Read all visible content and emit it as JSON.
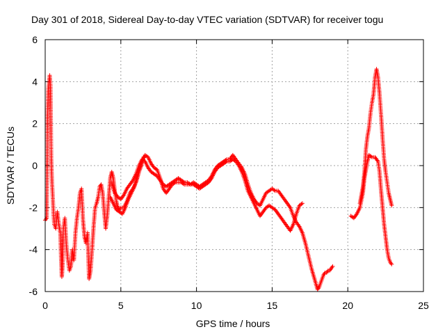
{
  "chart_data": {
    "type": "scatter",
    "title": "Day 301 of 2018, Sidereal Day-to-day VTEC variation (SDTVAR) for receiver togu",
    "xlabel": "GPS time / hours",
    "ylabel": "SDTVAR / TECUs",
    "xlim": [
      0,
      25
    ],
    "ylim": [
      -6,
      6
    ],
    "xticks": [
      0,
      5,
      10,
      15,
      20,
      25
    ],
    "yticks": [
      -6,
      -4,
      -2,
      0,
      2,
      4,
      6
    ],
    "grid": true,
    "marker": "+",
    "series_color": "#ff0000",
    "series": [
      {
        "name": "SDTVAR",
        "segments": [
          [
            [
              0.0,
              -2.6
            ],
            [
              0.1,
              -2.5
            ],
            [
              0.15,
              2.3
            ],
            [
              0.2,
              3.6
            ],
            [
              0.3,
              4.3
            ],
            [
              0.35,
              3.8
            ],
            [
              0.4,
              0.3
            ],
            [
              0.45,
              -0.8
            ],
            [
              0.5,
              -1.5
            ],
            [
              0.55,
              -2.3
            ],
            [
              0.6,
              -2.8
            ],
            [
              0.7,
              -3.0
            ],
            [
              0.8,
              -2.2
            ],
            [
              0.9,
              -2.8
            ],
            [
              1.0,
              -3.2
            ],
            [
              1.05,
              -4.4
            ],
            [
              1.1,
              -5.3
            ],
            [
              1.15,
              -4.8
            ],
            [
              1.2,
              -3.0
            ],
            [
              1.3,
              -2.5
            ],
            [
              1.4,
              -3.8
            ],
            [
              1.5,
              -4.5
            ],
            [
              1.6,
              -5.0
            ],
            [
              1.7,
              -4.8
            ],
            [
              1.8,
              -4.0
            ],
            [
              1.9,
              -4.5
            ],
            [
              2.0,
              -3.2
            ],
            [
              2.1,
              -2.5
            ],
            [
              2.2,
              -2.0
            ],
            [
              2.3,
              -1.3
            ],
            [
              2.4,
              -1.1
            ],
            [
              2.5,
              -2.6
            ],
            [
              2.6,
              -3.4
            ],
            [
              2.7,
              -3.7
            ],
            [
              2.8,
              -3.2
            ],
            [
              2.9,
              -5.4
            ],
            [
              3.0,
              -5.0
            ],
            [
              3.1,
              -4.0
            ],
            [
              3.2,
              -2.9
            ],
            [
              3.3,
              -2.0
            ],
            [
              3.4,
              -1.8
            ],
            [
              3.5,
              -1.5
            ],
            [
              3.6,
              -1.0
            ],
            [
              3.7,
              -0.9
            ],
            [
              3.8,
              -1.3
            ],
            [
              3.9,
              -2.2
            ],
            [
              4.0,
              -3.0
            ],
            [
              4.1,
              -2.4
            ],
            [
              4.2,
              -1.5
            ],
            [
              4.3,
              -0.6
            ],
            [
              4.4,
              -0.3
            ],
            [
              4.5,
              -0.6
            ],
            [
              4.6,
              -1.2
            ],
            [
              4.7,
              -1.7
            ],
            [
              4.8,
              -2.0
            ],
            [
              4.9,
              -2.1
            ],
            [
              5.0,
              -2.0
            ],
            [
              5.2,
              -2.0
            ],
            [
              5.4,
              -1.7
            ],
            [
              5.6,
              -1.3
            ],
            [
              5.8,
              -1.1
            ],
            [
              6.0,
              -0.8
            ],
            [
              6.2,
              -0.3
            ],
            [
              6.4,
              0.2
            ],
            [
              6.6,
              0.5
            ],
            [
              6.8,
              0.4
            ],
            [
              7.0,
              0.1
            ],
            [
              7.2,
              -0.1
            ],
            [
              7.4,
              -0.2
            ],
            [
              7.6,
              -0.6
            ],
            [
              7.8,
              -1.1
            ],
            [
              8.0,
              -1.3
            ],
            [
              8.2,
              -1.1
            ],
            [
              8.4,
              -0.9
            ],
            [
              8.6,
              -0.8
            ],
            [
              8.8,
              -0.8
            ],
            [
              9.0,
              -0.8
            ],
            [
              9.2,
              -0.9
            ],
            [
              9.4,
              -0.9
            ],
            [
              9.6,
              -0.9
            ],
            [
              9.8,
              -0.8
            ],
            [
              10.0,
              -0.9
            ],
            [
              10.2,
              -1.0
            ],
            [
              10.4,
              -0.9
            ],
            [
              10.6,
              -0.8
            ],
            [
              10.8,
              -0.7
            ],
            [
              11.0,
              -0.5
            ],
            [
              11.2,
              -0.2
            ],
            [
              11.4,
              0.0
            ],
            [
              11.6,
              0.1
            ],
            [
              11.8,
              0.2
            ],
            [
              12.0,
              0.3
            ],
            [
              12.2,
              0.3
            ],
            [
              12.4,
              0.5
            ],
            [
              12.6,
              0.3
            ],
            [
              12.8,
              0.1
            ],
            [
              13.0,
              -0.1
            ],
            [
              13.2,
              -0.4
            ],
            [
              13.4,
              -0.9
            ],
            [
              13.6,
              -1.3
            ],
            [
              13.8,
              -1.6
            ],
            [
              14.0,
              -1.8
            ],
            [
              14.2,
              -1.9
            ],
            [
              14.4,
              -1.6
            ],
            [
              14.6,
              -1.3
            ],
            [
              14.8,
              -1.2
            ],
            [
              15.0,
              -1.1
            ],
            [
              15.2,
              -1.2
            ],
            [
              15.4,
              -1.2
            ],
            [
              15.6,
              -1.4
            ],
            [
              15.8,
              -1.6
            ],
            [
              16.0,
              -1.8
            ],
            [
              16.2,
              -2.0
            ],
            [
              16.4,
              -2.4
            ],
            [
              16.6,
              -2.7
            ],
            [
              16.8,
              -2.9
            ],
            [
              17.0,
              -3.2
            ],
            [
              17.2,
              -3.7
            ],
            [
              17.4,
              -4.3
            ],
            [
              17.6,
              -4.9
            ],
            [
              17.8,
              -5.4
            ],
            [
              18.0,
              -5.9
            ],
            [
              18.1,
              -5.8
            ],
            [
              18.2,
              -5.6
            ],
            [
              18.3,
              -5.4
            ],
            [
              18.4,
              -5.2
            ],
            [
              18.5,
              -5.1
            ],
            [
              18.6,
              -5.1
            ],
            [
              18.7,
              -5.0
            ],
            [
              18.8,
              -5.0
            ],
            [
              18.9,
              -4.9
            ],
            [
              19.0,
              -4.8
            ]
          ],
          [
            [
              4.4,
              -0.8
            ],
            [
              4.6,
              -1.3
            ],
            [
              4.8,
              -1.5
            ],
            [
              5.0,
              -1.6
            ],
            [
              5.2,
              -1.4
            ],
            [
              5.4,
              -1.1
            ],
            [
              5.6,
              -0.9
            ],
            [
              5.8,
              -0.7
            ],
            [
              6.0,
              -0.4
            ],
            [
              6.2,
              0.0
            ],
            [
              6.4,
              0.3
            ],
            [
              6.6,
              0.2
            ],
            [
              6.8,
              -0.1
            ],
            [
              7.0,
              -0.3
            ],
            [
              7.2,
              -0.4
            ],
            [
              7.4,
              -0.5
            ],
            [
              7.6,
              -0.7
            ],
            [
              7.8,
              -0.9
            ],
            [
              8.0,
              -1.0
            ],
            [
              8.2,
              -0.9
            ],
            [
              8.4,
              -0.8
            ],
            [
              8.6,
              -0.7
            ],
            [
              8.8,
              -0.6
            ],
            [
              9.0,
              -0.7
            ],
            [
              9.2,
              -0.8
            ],
            [
              9.4,
              -0.8
            ],
            [
              9.6,
              -0.9
            ],
            [
              9.8,
              -0.9
            ],
            [
              10.0,
              -1.0
            ],
            [
              10.2,
              -1.1
            ],
            [
              10.4,
              -1.0
            ],
            [
              10.6,
              -0.9
            ],
            [
              10.8,
              -0.8
            ],
            [
              11.0,
              -0.6
            ],
            [
              11.2,
              -0.3
            ],
            [
              11.4,
              -0.1
            ],
            [
              11.6,
              0.0
            ],
            [
              11.8,
              0.1
            ],
            [
              12.0,
              0.2
            ],
            [
              12.2,
              0.2
            ],
            [
              12.4,
              0.3
            ],
            [
              12.6,
              0.2
            ],
            [
              12.8,
              0.0
            ],
            [
              13.0,
              -0.3
            ],
            [
              13.2,
              -0.7
            ],
            [
              13.4,
              -1.2
            ],
            [
              13.6,
              -1.5
            ],
            [
              13.8,
              -1.8
            ],
            [
              14.0,
              -2.1
            ],
            [
              14.2,
              -2.4
            ],
            [
              14.4,
              -2.2
            ],
            [
              14.6,
              -2.0
            ],
            [
              14.8,
              -1.9
            ],
            [
              15.0,
              -2.0
            ],
            [
              15.2,
              -2.1
            ],
            [
              15.4,
              -2.3
            ],
            [
              15.6,
              -2.5
            ],
            [
              15.8,
              -2.7
            ],
            [
              16.0,
              -2.9
            ],
            [
              16.2,
              -3.1
            ],
            [
              16.4,
              -2.8
            ],
            [
              16.6,
              -2.3
            ],
            [
              16.8,
              -1.9
            ],
            [
              17.0,
              -1.8
            ]
          ],
          [
            [
              4.3,
              -1.5
            ],
            [
              4.5,
              -1.8
            ],
            [
              4.7,
              -2.1
            ],
            [
              4.9,
              -2.2
            ],
            [
              5.1,
              -2.3
            ],
            [
              5.3,
              -2.0
            ],
            [
              5.5,
              -1.6
            ],
            [
              5.7,
              -1.3
            ],
            [
              5.9,
              -1.0
            ],
            [
              6.1,
              -0.5
            ],
            [
              6.3,
              -0.1
            ],
            [
              6.5,
              0.4
            ]
          ],
          [
            [
              20.2,
              -2.4
            ],
            [
              20.4,
              -2.5
            ],
            [
              20.6,
              -2.3
            ],
            [
              20.8,
              -2.0
            ],
            [
              21.0,
              -1.3
            ],
            [
              21.1,
              -0.6
            ],
            [
              21.2,
              -0.2
            ],
            [
              21.3,
              0.2
            ],
            [
              21.4,
              0.5
            ],
            [
              21.6,
              0.4
            ],
            [
              21.8,
              0.4
            ],
            [
              22.0,
              0.2
            ],
            [
              22.1,
              -0.3
            ],
            [
              22.2,
              -1.2
            ],
            [
              22.3,
              -2.0
            ],
            [
              22.4,
              -2.8
            ],
            [
              22.5,
              -3.4
            ],
            [
              22.6,
              -4.0
            ],
            [
              22.7,
              -4.4
            ],
            [
              22.8,
              -4.6
            ],
            [
              22.9,
              -4.7
            ]
          ],
          [
            [
              20.8,
              -1.8
            ],
            [
              21.0,
              -1.0
            ],
            [
              21.1,
              -0.3
            ],
            [
              21.2,
              0.8
            ],
            [
              21.3,
              1.4
            ],
            [
              21.4,
              1.8
            ],
            [
              21.5,
              2.5
            ],
            [
              21.6,
              3.0
            ],
            [
              21.7,
              3.4
            ],
            [
              21.8,
              4.2
            ],
            [
              21.9,
              4.6
            ],
            [
              22.0,
              4.2
            ],
            [
              22.1,
              3.4
            ],
            [
              22.2,
              2.4
            ],
            [
              22.3,
              1.3
            ],
            [
              22.4,
              0.3
            ],
            [
              22.5,
              -0.3
            ],
            [
              22.6,
              -0.8
            ],
            [
              22.7,
              -1.3
            ],
            [
              22.8,
              -1.6
            ],
            [
              22.9,
              -1.9
            ]
          ]
        ]
      }
    ]
  }
}
